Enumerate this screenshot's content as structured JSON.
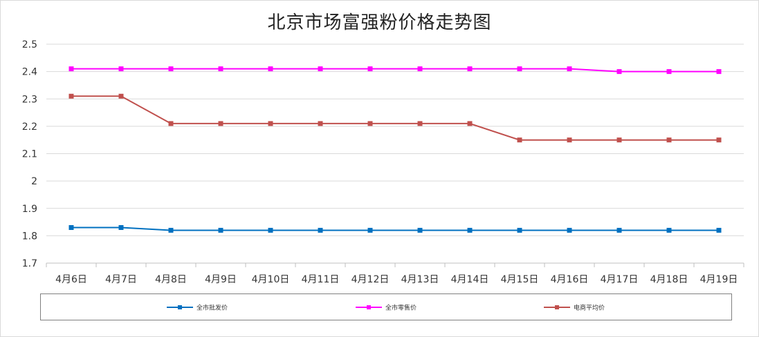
{
  "chart_data": {
    "type": "line",
    "title": "北京市场富强粉价格走势图",
    "categories": [
      "4月6日",
      "4月7日",
      "4月8日",
      "4月9日",
      "4月10日",
      "4月11日",
      "4月12日",
      "4月13日",
      "4月14日",
      "4月15日",
      "4月16日",
      "4月17日",
      "4月18日",
      "4月19日"
    ],
    "ylim": [
      1.7,
      2.5
    ],
    "yticks": [
      "2.5",
      "2.4",
      "2.3",
      "2.2",
      "2.1",
      "2",
      "1.9",
      "1.8",
      "1.7"
    ],
    "grid": true,
    "legend_position": "bottom",
    "series": [
      {
        "name": "全市批发价",
        "color": "#0070c0",
        "values": [
          1.83,
          1.83,
          1.82,
          1.82,
          1.82,
          1.82,
          1.82,
          1.82,
          1.82,
          1.82,
          1.82,
          1.82,
          1.82,
          1.82
        ]
      },
      {
        "name": "全市零售价",
        "color": "#ff00ff",
        "values": [
          2.41,
          2.41,
          2.41,
          2.41,
          2.41,
          2.41,
          2.41,
          2.41,
          2.41,
          2.41,
          2.41,
          2.4,
          2.4,
          2.4
        ]
      },
      {
        "name": "电商平均价",
        "color": "#c0504d",
        "values": [
          2.31,
          2.31,
          2.21,
          2.21,
          2.21,
          2.21,
          2.21,
          2.21,
          2.21,
          2.15,
          2.15,
          2.15,
          2.15,
          2.15
        ]
      }
    ]
  }
}
